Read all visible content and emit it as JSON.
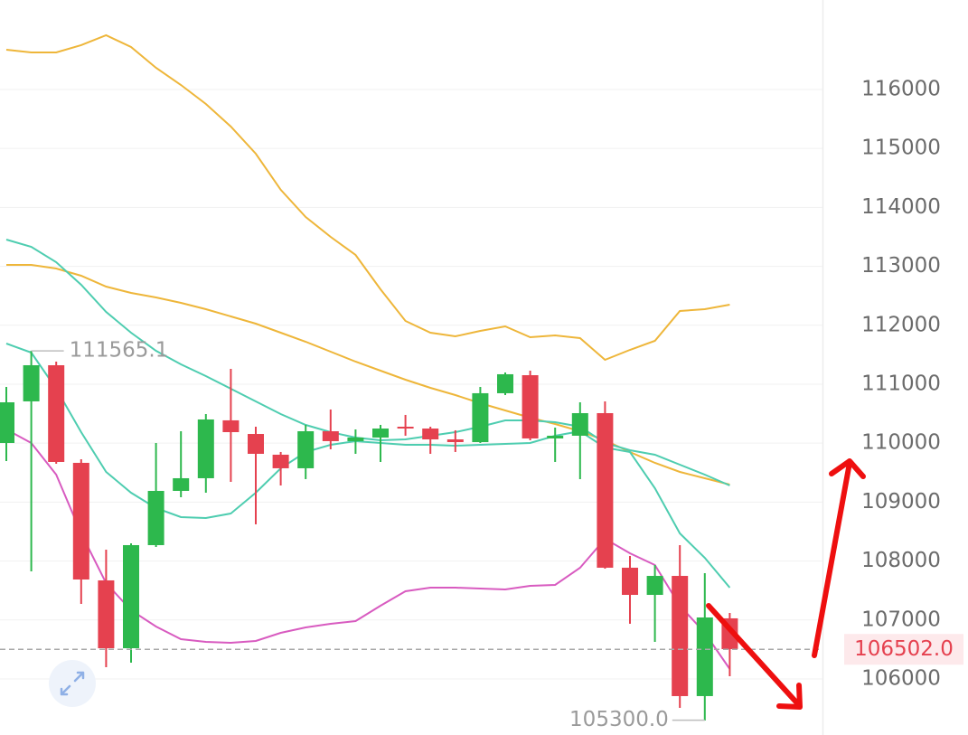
{
  "chart_data": {
    "type": "candlestick",
    "open": [
      110003,
      110709,
      111322,
      109666,
      107672,
      106521,
      108270,
      109190,
      109405,
      110387,
      110156,
      109804,
      109574,
      110202,
      110034,
      110095,
      110279,
      110248,
      110064,
      110018,
      110847,
      111153,
      110080,
      110126,
      110509,
      107887,
      107426,
      107748,
      105709,
      107028
    ],
    "high": [
      110954,
      111567,
      111383,
      109727,
      108193,
      108301,
      110003,
      110202,
      110494,
      111261,
      110279,
      109850,
      110310,
      110571,
      110233,
      110310,
      110479,
      110279,
      110218,
      110954,
      111199,
      111230,
      110264,
      110693,
      110709,
      108086,
      107933,
      108270,
      107795,
      107120
    ],
    "low": [
      109696,
      107825,
      109650,
      107273,
      106199,
      106276,
      108239,
      109083,
      109160,
      109344,
      108623,
      109282,
      109390,
      109896,
      109819,
      109681,
      110126,
      109819,
      109850,
      110003,
      110816,
      110049,
      109681,
      109390,
      107871,
      106936,
      106629,
      105509,
      105294,
      106046
    ],
    "close": [
      110693,
      111322,
      109681,
      107687,
      106521,
      108270,
      109190,
      109405,
      110402,
      110187,
      109819,
      109574,
      110202,
      110034,
      110095,
      110248,
      110248,
      110064,
      110018,
      110847,
      111169,
      110080,
      110126,
      110509,
      107887,
      107426,
      107748,
      105709,
      107043,
      106506
    ],
    "up_color": "#2db84d",
    "down_color": "#e5414f",
    "lines": [
      {
        "color": "#eeb63a",
        "values": [
          116675,
          116629,
          116629,
          116752,
          116920,
          116721,
          116368,
          116077,
          115755,
          115371,
          114911,
          114298,
          113837,
          113500,
          113193,
          112610,
          112074,
          111874,
          111813,
          111905,
          111982,
          111798,
          111828,
          111782,
          111414,
          111583,
          111736,
          112242,
          112273,
          112350
        ]
      },
      {
        "color": "#eeb63a",
        "values": [
          113025,
          113025,
          112963,
          112840,
          112656,
          112549,
          112472,
          112380,
          112273,
          112150,
          112028,
          111874,
          111721,
          111552,
          111383,
          111230,
          111077,
          110939,
          110816,
          110678,
          110555,
          110433,
          110325,
          110202,
          110049,
          109850,
          109666,
          109512,
          109405,
          109298
        ]
      },
      {
        "color": "#4ecdb0",
        "values": [
          113454,
          113331,
          113071,
          112687,
          112227,
          111874,
          111567,
          111337,
          111138,
          110923,
          110709,
          110494,
          110310,
          110187,
          110095,
          110049,
          110064,
          110126,
          110187,
          110279,
          110387,
          110387,
          110356,
          110279,
          110003,
          109880,
          109804,
          109635,
          109466,
          109282
        ]
      },
      {
        "color": "#4ecdb0",
        "values": [
          111690,
          111537,
          110923,
          110187,
          109512,
          109160,
          108899,
          108745,
          108730,
          108807,
          109160,
          109574,
          109850,
          109972,
          110034,
          110003,
          109972,
          109972,
          109957,
          109972,
          109988,
          110003,
          110126,
          110202,
          109926,
          109850,
          109236,
          108469,
          108055,
          107549
        ]
      },
      {
        "color": "#d85bc0",
        "values": [
          110233,
          110003,
          109466,
          108469,
          107626,
          107166,
          106890,
          106675,
          106629,
          106613,
          106644,
          106782,
          106874,
          106936,
          106982,
          107242,
          107488,
          107549,
          107549,
          107534,
          107518,
          107580,
          107595,
          107887,
          108377,
          108132,
          107933,
          107242,
          106782,
          106169
        ]
      }
    ],
    "ylim": [
      105049,
      117518
    ],
    "yticks": [
      106000,
      107000,
      108000,
      109000,
      110000,
      111000,
      112000,
      113000,
      114000,
      115000,
      116000
    ],
    "grid": true,
    "max_marker": 111565.1,
    "min_marker": {
      "value": 105300,
      "label": "105300.0"
    },
    "last_price": {
      "value": 106502,
      "label": "106502.0"
    }
  }
}
